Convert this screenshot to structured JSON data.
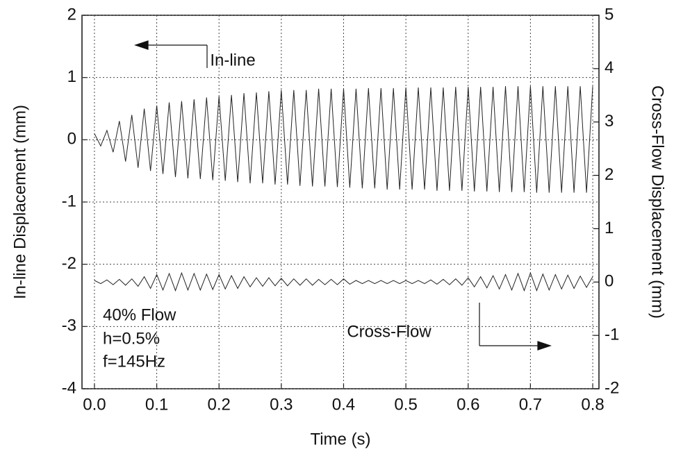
{
  "chart_data": {
    "type": "line",
    "x_label": "Time (s)",
    "y_label": "In-line Displacement (mm)",
    "y2_label": "Cross-Flow Displacement (mm)",
    "annotations": [
      "In-line",
      "Cross-Flow",
      "40% Flow",
      "h=0.5%",
      "f=145Hz"
    ],
    "x": [
      0,
      0.01,
      0.02,
      0.03,
      0.04,
      0.05,
      0.06,
      0.07,
      0.08,
      0.09,
      0.1,
      0.11,
      0.12,
      0.13,
      0.14,
      0.15,
      0.16,
      0.17,
      0.18,
      0.19,
      0.2,
      0.21,
      0.22,
      0.23,
      0.24,
      0.25,
      0.26,
      0.27,
      0.28,
      0.29,
      0.3,
      0.31,
      0.32,
      0.33,
      0.34,
      0.35,
      0.36,
      0.37,
      0.38,
      0.39,
      0.4,
      0.41,
      0.42,
      0.43,
      0.44,
      0.45,
      0.46,
      0.47,
      0.48,
      0.49,
      0.5,
      0.51,
      0.52,
      0.53,
      0.54,
      0.55,
      0.56,
      0.57,
      0.58,
      0.59,
      0.6,
      0.61,
      0.62,
      0.63,
      0.64,
      0.65,
      0.66,
      0.67,
      0.68,
      0.69,
      0.7,
      0.71,
      0.72,
      0.73,
      0.74,
      0.75,
      0.76,
      0.77,
      0.78,
      0.79,
      0.8
    ],
    "series": [
      {
        "name": "In-line",
        "color": "#222222",
        "axis": "y",
        "values": [
          0.1,
          -0.1,
          0.15,
          -0.2,
          0.3,
          -0.35,
          0.4,
          -0.45,
          0.5,
          -0.5,
          0.55,
          -0.55,
          0.6,
          -0.6,
          0.62,
          -0.62,
          0.65,
          -0.63,
          0.68,
          -0.65,
          0.7,
          -0.66,
          0.72,
          -0.68,
          0.75,
          -0.7,
          0.76,
          -0.7,
          0.78,
          -0.72,
          0.8,
          -0.72,
          0.8,
          -0.74,
          0.8,
          -0.75,
          0.82,
          -0.75,
          0.82,
          -0.76,
          0.82,
          -0.77,
          0.82,
          -0.78,
          0.83,
          -0.78,
          0.83,
          -0.8,
          0.83,
          -0.8,
          0.84,
          -0.8,
          0.84,
          -0.8,
          0.84,
          -0.82,
          0.84,
          -0.82,
          0.85,
          -0.82,
          0.85,
          -0.83,
          0.85,
          -0.83,
          0.85,
          -0.84,
          0.86,
          -0.84,
          0.86,
          -0.84,
          0.86,
          -0.85,
          0.86,
          -0.85,
          0.86,
          -0.85,
          0.86,
          -0.85,
          0.86,
          -0.85,
          0.86
        ]
      },
      {
        "name": "Cross-Flow",
        "color": "#222222",
        "axis": "y2",
        "values": [
          0.03,
          -0.03,
          0.04,
          -0.05,
          0.05,
          -0.06,
          0.06,
          -0.08,
          0.1,
          -0.12,
          0.14,
          -0.15,
          0.16,
          -0.16,
          0.17,
          -0.15,
          0.16,
          -0.15,
          0.15,
          -0.14,
          0.14,
          -0.13,
          0.12,
          -0.12,
          0.1,
          -0.09,
          0.08,
          -0.08,
          0.08,
          -0.07,
          0.07,
          -0.07,
          0.06,
          -0.06,
          0.06,
          -0.06,
          0.05,
          -0.05,
          0.05,
          -0.05,
          0.06,
          -0.04,
          0.03,
          -0.03,
          0.03,
          -0.03,
          0.03,
          -0.03,
          0.03,
          -0.03,
          0.03,
          -0.03,
          0.03,
          -0.03,
          0.04,
          -0.04,
          0.05,
          -0.05,
          0.06,
          -0.06,
          0.08,
          -0.09,
          0.1,
          -0.11,
          0.12,
          -0.13,
          0.14,
          -0.15,
          0.16,
          -0.16,
          0.17,
          -0.16,
          0.15,
          -0.15,
          0.14,
          -0.13,
          0.13,
          -0.12,
          0.11,
          -0.1,
          0.1
        ]
      }
    ],
    "xlim": [
      -0.02,
      0.81
    ],
    "xticks": [
      {
        "value": 0,
        "label": "0.0"
      },
      0.1,
      0.2,
      0.3,
      0.4,
      0.5,
      0.6,
      0.7,
      0.8
    ],
    "ylim": [
      -4,
      2
    ],
    "yticks": [
      -4,
      -3,
      -2,
      -1,
      0,
      1,
      2
    ],
    "y2lim": [
      -2,
      5
    ],
    "y2ticks": [
      -2,
      -1,
      0,
      1,
      2,
      3,
      4,
      5
    ],
    "grid": true
  }
}
